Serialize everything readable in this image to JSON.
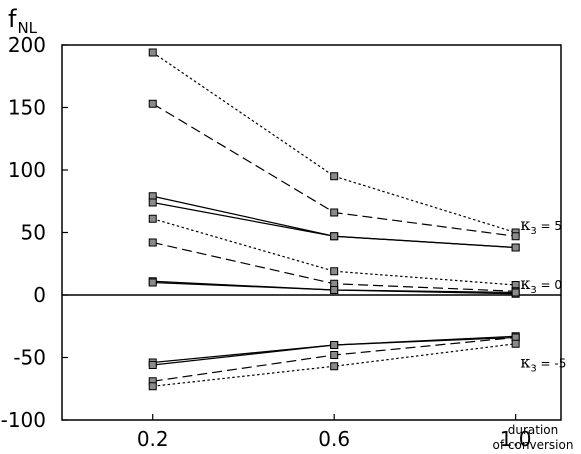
{
  "chart_data": {
    "type": "line",
    "ylabel_main": "f",
    "ylabel_sub": "NL",
    "xlabel_line1": "duration",
    "xlabel_line2": "of conversion",
    "x": [
      0.2,
      0.6,
      1.0
    ],
    "x_tick_labels": [
      "0.2",
      "0.6",
      "1.0"
    ],
    "xlim": [
      0.0,
      1.1
    ],
    "ylim": [
      -100,
      200
    ],
    "y_ticks": [
      -100,
      -50,
      0,
      50,
      100,
      150,
      200
    ],
    "y_tick_labels": [
      "-100",
      "-50",
      "0",
      "50",
      "100",
      "150",
      "200"
    ],
    "zero_line": true,
    "grid": false,
    "marker": "square",
    "series": [
      {
        "style": "dotted",
        "values": [
          194,
          95,
          50
        ]
      },
      {
        "style": "dashed",
        "values": [
          153,
          66,
          47
        ]
      },
      {
        "style": "solid",
        "values": [
          79,
          47,
          38
        ]
      },
      {
        "style": "solid",
        "values": [
          74,
          47,
          38
        ]
      },
      {
        "style": "dotted",
        "values": [
          61,
          19,
          8
        ]
      },
      {
        "style": "dashed",
        "values": [
          42,
          9,
          3
        ]
      },
      {
        "style": "solid",
        "values": [
          11,
          4,
          1
        ]
      },
      {
        "style": "solid",
        "values": [
          10,
          4,
          2
        ]
      },
      {
        "style": "solid",
        "values": [
          -54,
          -40,
          -33
        ]
      },
      {
        "style": "solid",
        "values": [
          -56,
          -40,
          -34
        ]
      },
      {
        "style": "dashed",
        "values": [
          -69,
          -48,
          -34
        ]
      },
      {
        "style": "dotted",
        "values": [
          -73,
          -57,
          -39
        ]
      }
    ],
    "annotations": [
      {
        "symbol": "κ",
        "sub": "3",
        "rest": " = 5",
        "x": 1.05,
        "y": 56
      },
      {
        "symbol": "κ",
        "sub": "3",
        "rest": " = 0",
        "x": 1.05,
        "y": 9
      },
      {
        "symbol": "κ",
        "sub": "3",
        "rest": " = -5",
        "x": 1.05,
        "y": -54
      }
    ]
  }
}
